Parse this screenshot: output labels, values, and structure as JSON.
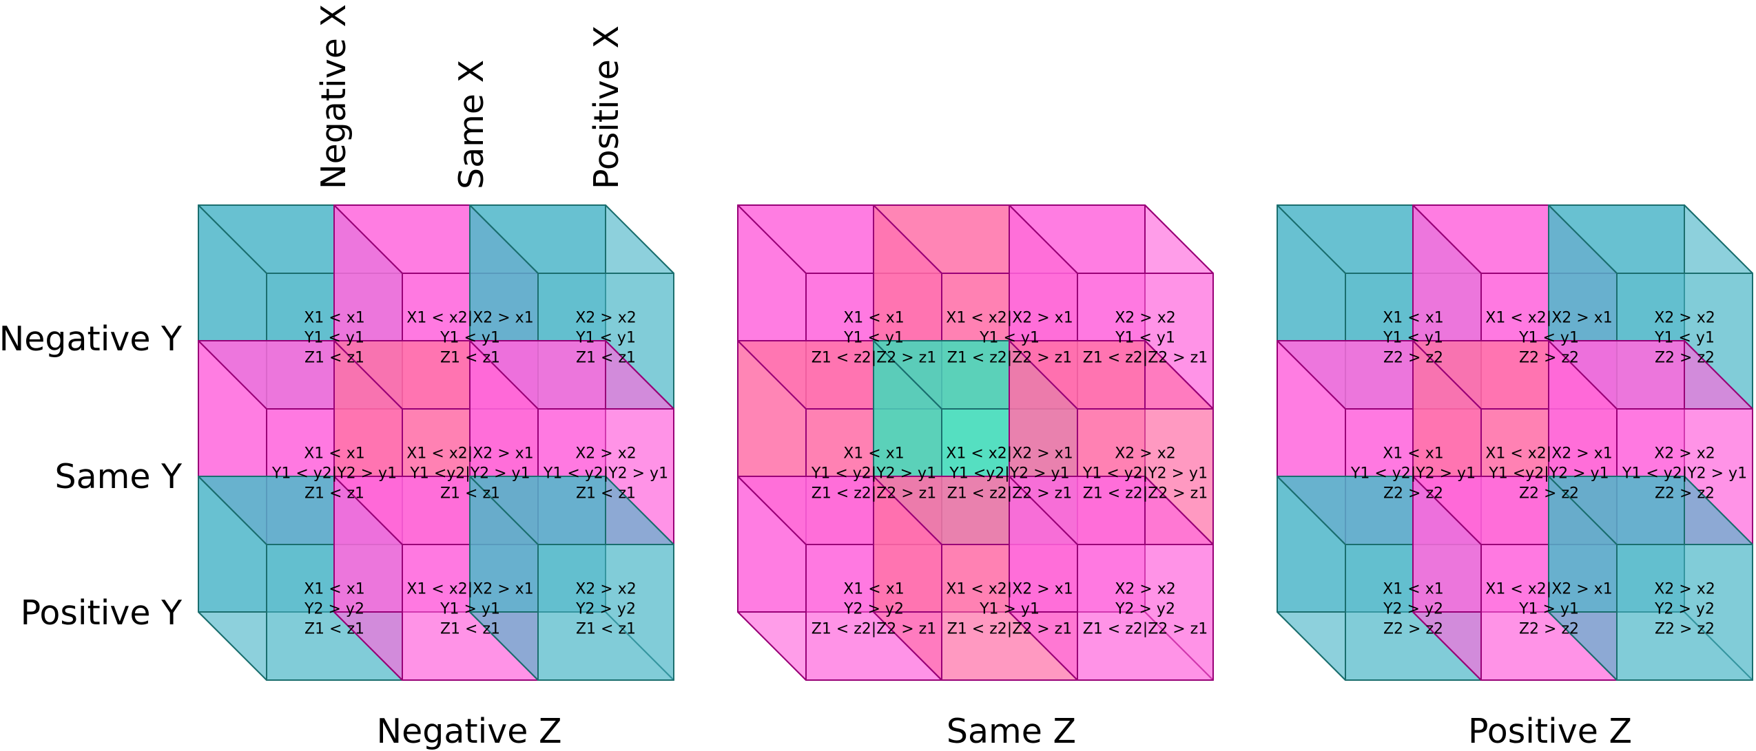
{
  "column_labels": [
    "Negative X",
    "Same X",
    "Positive X"
  ],
  "row_labels": [
    "Negative Y",
    "Same Y",
    "Positive Y"
  ],
  "colors": {
    "teal": "#4db6c9",
    "pink": "#ff66dd",
    "salmon": "#ff6fa8",
    "mint": "#3ddbb8",
    "edge_teal": "#1a6e6e",
    "edge_pink": "#990077"
  },
  "panels": [
    {
      "label": "Negative Z",
      "cells": [
        [
          {
            "lines": [
              "X1 < x1",
              "Y1 < y1",
              "Z1 < z1"
            ],
            "color": "teal"
          },
          {
            "lines": [
              "X1 < x2|X2 > x1",
              "Y1 < y1",
              "Z1 < z1"
            ],
            "color": "pink"
          },
          {
            "lines": [
              "X2 > x2",
              "Y1 < y1",
              "Z1 < z1"
            ],
            "color": "teal"
          }
        ],
        [
          {
            "lines": [
              "X1 < x1",
              "Y1 < y2|Y2 > y1",
              "Z1 < z1"
            ],
            "color": "pink"
          },
          {
            "lines": [
              "X1 < x2|X2 > x1",
              "Y1 <y2|Y2 > y1",
              "Z1 < z1"
            ],
            "color": "salmon"
          },
          {
            "lines": [
              "X2 > x2",
              "Y1 < y2|Y2 > y1",
              "Z1 < z1"
            ],
            "color": "pink"
          }
        ],
        [
          {
            "lines": [
              "X1 < x1",
              "Y2 > y2",
              "Z1 < z1"
            ],
            "color": "teal"
          },
          {
            "lines": [
              "X1 < x2|X2 > x1",
              "Y1 > y1",
              "Z1 < z1"
            ],
            "color": "pink"
          },
          {
            "lines": [
              "X2 > x2",
              "Y2 > y2",
              "Z1 < z1"
            ],
            "color": "teal"
          }
        ]
      ]
    },
    {
      "label": "Same Z",
      "cells": [
        [
          {
            "lines": [
              "X1 < x1",
              "Y1 < y1",
              "Z1 < z2|Z2 > z1"
            ],
            "color": "pink"
          },
          {
            "lines": [
              "X1 < x2|X2 > x1",
              "Y1 < y1",
              "Z1 < z2|Z2 > z1"
            ],
            "color": "salmon"
          },
          {
            "lines": [
              "X2 > x2",
              "Y1 < y1",
              "Z1 < z2|Z2 > z1"
            ],
            "color": "pink"
          }
        ],
        [
          {
            "lines": [
              "X1 < x1",
              "Y1 < y2|Y2 > y1",
              "Z1 < z2|Z2 > z1"
            ],
            "color": "salmon"
          },
          {
            "lines": [
              "X1 < x2|X2 > x1",
              "Y1 <y2|Y2 > y1",
              "Z1 < z2|Z2 > z1"
            ],
            "color": "mint"
          },
          {
            "lines": [
              "X2 > x2",
              "Y1 < y2|Y2 > y1",
              "Z1 < z2|Z2 > z1"
            ],
            "color": "salmon"
          }
        ],
        [
          {
            "lines": [
              "X1 < x1",
              "Y2 > y2",
              "Z1 < z2|Z2 > z1"
            ],
            "color": "pink"
          },
          {
            "lines": [
              "X1 < x2|X2 > x1",
              "Y1 > y1",
              "Z1 < z2|Z2 > z1"
            ],
            "color": "salmon"
          },
          {
            "lines": [
              "X2 > x2",
              "Y2 > y2",
              "Z1 < z2|Z2 > z1"
            ],
            "color": "pink"
          }
        ]
      ]
    },
    {
      "label": "Positive Z",
      "cells": [
        [
          {
            "lines": [
              "X1 < x1",
              "Y1 < y1",
              "Z2 > z2"
            ],
            "color": "teal"
          },
          {
            "lines": [
              "X1 < x2|X2 > x1",
              "Y1 < y1",
              "Z2 > z2"
            ],
            "color": "pink"
          },
          {
            "lines": [
              "X2 > x2",
              "Y1 < y1",
              "Z2 > z2"
            ],
            "color": "teal"
          }
        ],
        [
          {
            "lines": [
              "X1 < x1",
              "Y1 < y2|Y2 > y1",
              "Z2 > z2"
            ],
            "color": "pink"
          },
          {
            "lines": [
              "X1 < x2|X2 > x1",
              "Y1 <y2|Y2 > y1",
              "Z2 > z2"
            ],
            "color": "salmon"
          },
          {
            "lines": [
              "X2 > x2",
              "Y1 < y2|Y2 > y1",
              "Z2 > z2"
            ],
            "color": "pink"
          }
        ],
        [
          {
            "lines": [
              "X1 < x1",
              "Y2 > y2",
              "Z2 > z2"
            ],
            "color": "teal"
          },
          {
            "lines": [
              "X1 < x2|X2 > x1",
              "Y1 > y1",
              "Z2 > z2"
            ],
            "color": "pink"
          },
          {
            "lines": [
              "X2 > x2",
              "Y2 > y2",
              "Z2 > z2"
            ],
            "color": "teal"
          }
        ]
      ]
    }
  ]
}
